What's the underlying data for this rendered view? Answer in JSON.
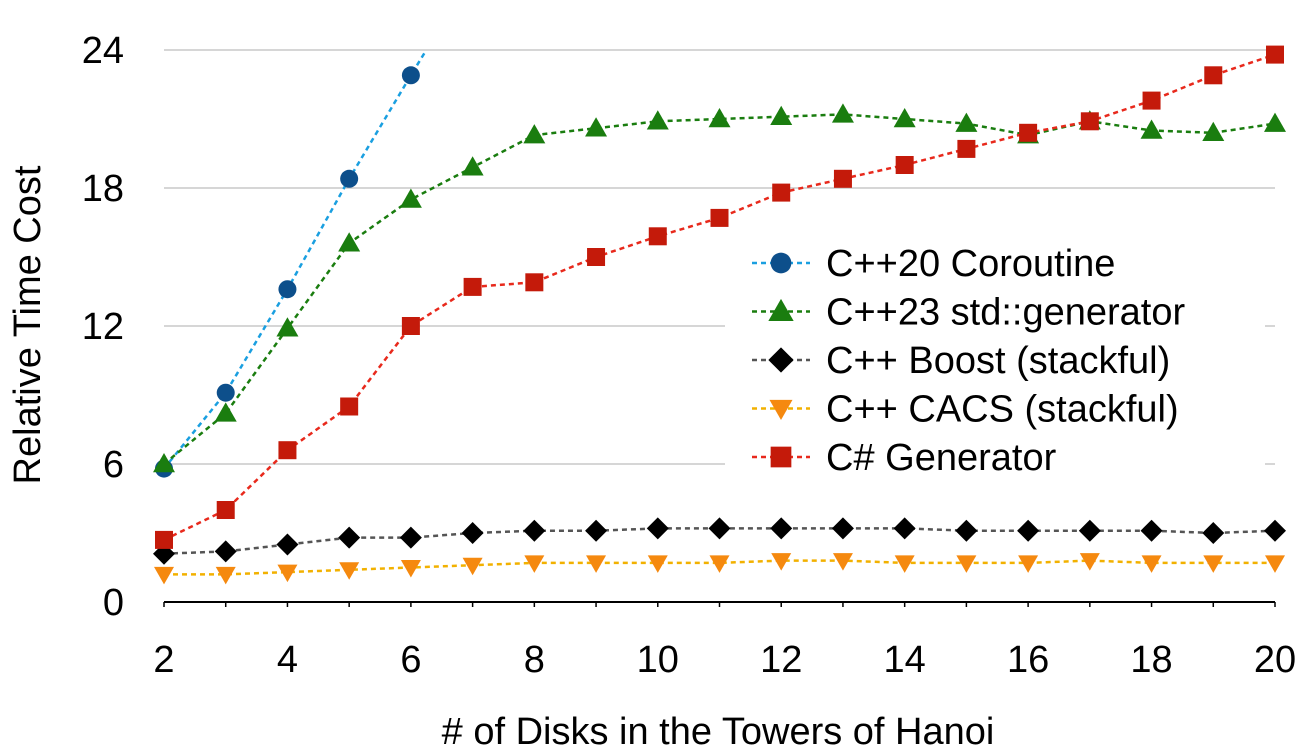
{
  "chart_data": {
    "type": "line",
    "xlabel": "# of Disks in the Towers of Hanoi",
    "ylabel": "Relative Time Cost",
    "xlim": [
      2,
      20
    ],
    "ylim": [
      0,
      24
    ],
    "x_ticks": [
      2,
      4,
      6,
      8,
      10,
      12,
      14,
      16,
      18,
      20
    ],
    "y_ticks": [
      0,
      6,
      12,
      18,
      24
    ],
    "grid": "horizontal",
    "legend_position": "center-right",
    "series": [
      {
        "name": "C++20 Coroutine",
        "color": "#0d4f8b",
        "line_color": "#1a9fe0",
        "marker": "circle",
        "x": [
          2,
          3,
          4,
          5,
          6
        ],
        "y": [
          5.8,
          9.1,
          13.6,
          18.4,
          22.9
        ],
        "trend_extends_to": [
          6.25,
          24
        ]
      },
      {
        "name": "C++23 std::generator",
        "color": "#1a7d0f",
        "line_color": "#1a7d0f",
        "marker": "triangle-up",
        "x": [
          2,
          3,
          4,
          5,
          6,
          7,
          8,
          9,
          10,
          11,
          12,
          13,
          14,
          15,
          16,
          17,
          18,
          19,
          20
        ],
        "y": [
          6.0,
          8.2,
          11.9,
          15.6,
          17.5,
          18.9,
          20.3,
          20.6,
          20.9,
          21.0,
          21.1,
          21.2,
          21.0,
          20.8,
          20.3,
          20.9,
          20.5,
          20.4,
          20.8
        ]
      },
      {
        "name": "C++ Boost (stackful)",
        "color": "#000000",
        "line_color": "#555555",
        "marker": "diamond",
        "x": [
          2,
          3,
          4,
          5,
          6,
          7,
          8,
          9,
          10,
          11,
          12,
          13,
          14,
          15,
          16,
          17,
          18,
          19,
          20
        ],
        "y": [
          2.1,
          2.2,
          2.5,
          2.8,
          2.8,
          3.0,
          3.1,
          3.1,
          3.2,
          3.2,
          3.2,
          3.2,
          3.2,
          3.1,
          3.1,
          3.1,
          3.1,
          3.0,
          3.1
        ]
      },
      {
        "name": "C++ CACS (stackful)",
        "color": "#f5890f",
        "line_color": "#f2b100",
        "marker": "triangle-down",
        "x": [
          2,
          3,
          4,
          5,
          6,
          7,
          8,
          9,
          10,
          11,
          12,
          13,
          14,
          15,
          16,
          17,
          18,
          19,
          20
        ],
        "y": [
          1.2,
          1.2,
          1.3,
          1.4,
          1.5,
          1.6,
          1.7,
          1.7,
          1.7,
          1.7,
          1.8,
          1.8,
          1.7,
          1.7,
          1.7,
          1.8,
          1.7,
          1.7,
          1.7
        ]
      },
      {
        "name": "C# Generator",
        "color": "#c41a0a",
        "line_color": "#e8291c",
        "marker": "square",
        "x": [
          2,
          3,
          4,
          5,
          6,
          7,
          8,
          9,
          10,
          11,
          12,
          13,
          14,
          15,
          16,
          17,
          18,
          19,
          20
        ],
        "y": [
          2.7,
          4.0,
          6.6,
          8.5,
          12.0,
          13.7,
          13.9,
          15.0,
          15.9,
          16.7,
          17.8,
          18.4,
          19.0,
          19.7,
          20.4,
          20.9,
          21.8,
          22.9,
          23.8
        ]
      }
    ]
  }
}
